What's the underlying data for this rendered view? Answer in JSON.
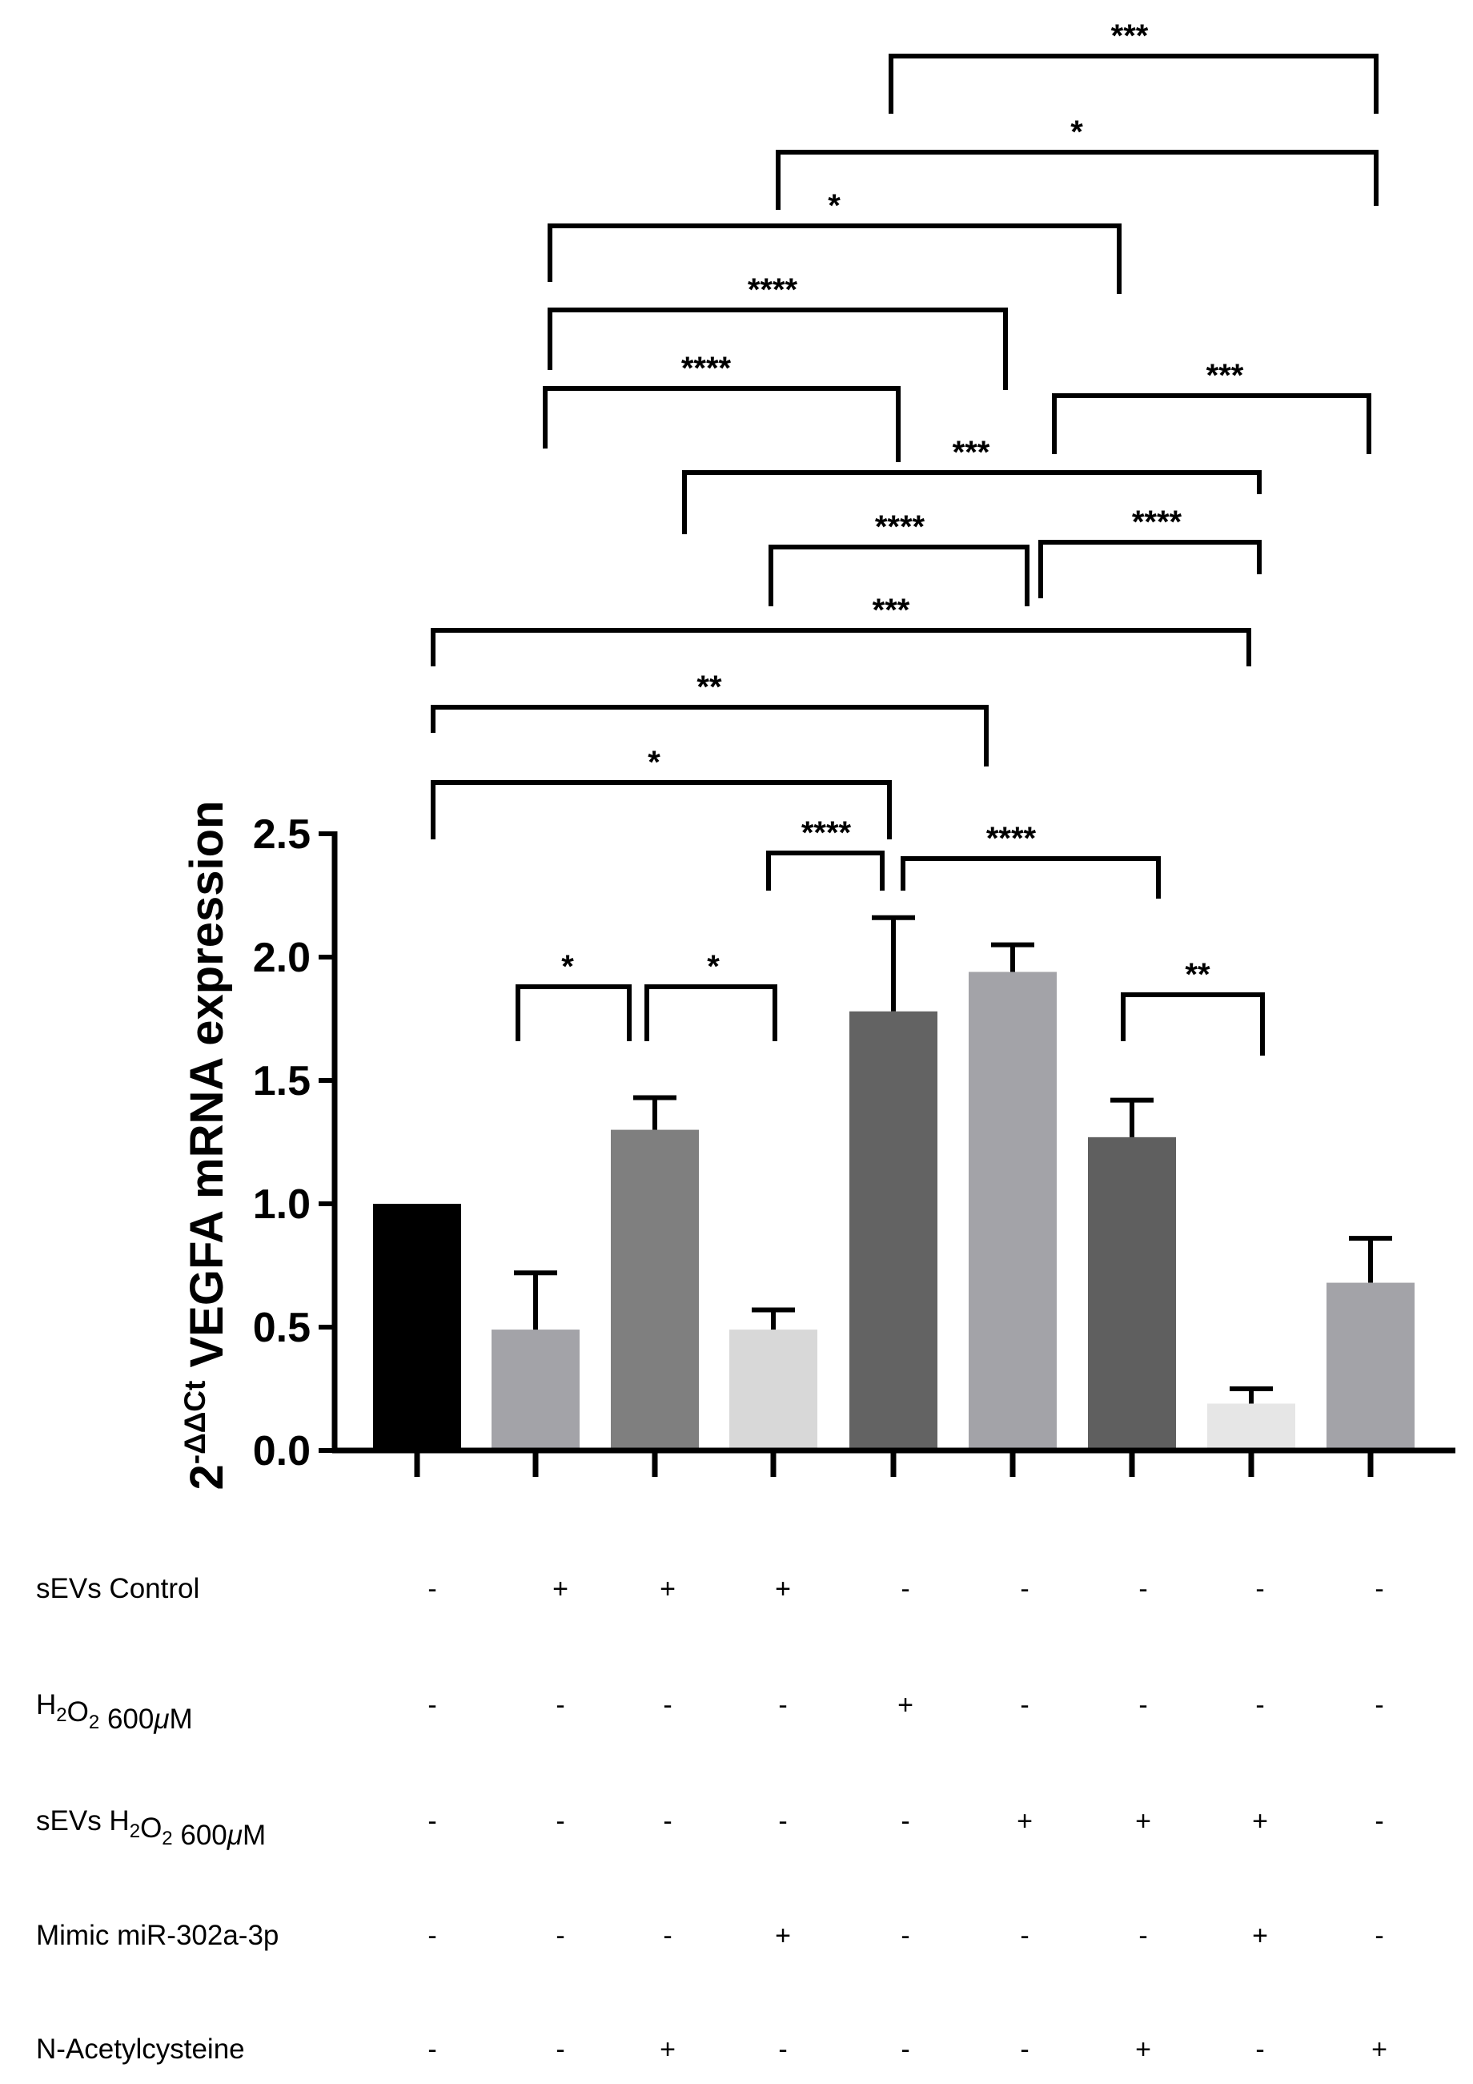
{
  "chart_data": {
    "type": "bar",
    "ylabel_prefix": "2",
    "ylabel_superscript": "-ΔΔCt",
    "ylabel_main": " VEGFA mRNA expression",
    "ylim": [
      0,
      2.5
    ],
    "yticks": [
      "0.0",
      "0.5",
      "1.0",
      "1.5",
      "2.0",
      "2.5"
    ],
    "values": [
      1.0,
      0.49,
      1.3,
      0.49,
      1.78,
      1.94,
      1.27,
      0.19,
      0.68
    ],
    "errors": [
      0.0,
      0.23,
      0.13,
      0.08,
      0.38,
      0.11,
      0.15,
      0.06,
      0.18
    ],
    "colors": [
      "#000000",
      "#a3a3a8",
      "#7f7f7f",
      "#d8d8d8",
      "#636363",
      "#a3a3a8",
      "#5f5f5f",
      "#e6e6e6",
      "#a3a3a8"
    ],
    "significance": [
      {
        "from": 1,
        "to": 2,
        "label": "*"
      },
      {
        "from": 2,
        "to": 3,
        "label": "*"
      },
      {
        "from": 3,
        "to": 4,
        "label": "****"
      },
      {
        "from": 4,
        "to": 6,
        "label": "****"
      },
      {
        "from": 6,
        "to": 7,
        "label": "**"
      },
      {
        "from": 0,
        "to": 4,
        "label": "*"
      },
      {
        "from": 0,
        "to": 5,
        "label": "**"
      },
      {
        "from": 0,
        "to": 7,
        "label": "***"
      },
      {
        "from": 3,
        "to": 5,
        "label": "****"
      },
      {
        "from": 5,
        "to": 7,
        "label": "****"
      },
      {
        "from": 2,
        "to": 7,
        "label": "***"
      },
      {
        "from": 1,
        "to": 4,
        "label": "****"
      },
      {
        "from": 5,
        "to": 8,
        "label": "***"
      },
      {
        "from": 1,
        "to": 5,
        "label": "****"
      },
      {
        "from": 1,
        "to": 6,
        "label": "*"
      },
      {
        "from": 3,
        "to": 8,
        "label": "*"
      },
      {
        "from": 4,
        "to": 8,
        "label": "***"
      }
    ],
    "treatments": [
      {
        "name": "sEVs Control",
        "marks": [
          "-",
          "+",
          "+",
          "+",
          "-",
          "-",
          "-",
          "-",
          "-"
        ]
      },
      {
        "name_parts": [
          "H",
          "2",
          "O",
          "2",
          " 600",
          "μ",
          "M"
        ],
        "marks": [
          "-",
          "-",
          "-",
          "-",
          "+",
          "-",
          "-",
          "-",
          "-"
        ]
      },
      {
        "name_parts": [
          "sEVs H",
          "2",
          "O",
          "2",
          " 600",
          "μ",
          "M"
        ],
        "marks": [
          "-",
          "-",
          "-",
          "-",
          "-",
          "+",
          "+",
          "+",
          "-"
        ]
      },
      {
        "name": "Mimic miR-302a-3p",
        "marks": [
          "-",
          "-",
          "-",
          "+",
          "-",
          "-",
          "-",
          "+",
          "-"
        ]
      },
      {
        "name": "N-Acetylcysteine",
        "marks": [
          "-",
          "-",
          "+",
          "-",
          "-",
          "-",
          "+",
          "-",
          "+"
        ]
      }
    ]
  }
}
